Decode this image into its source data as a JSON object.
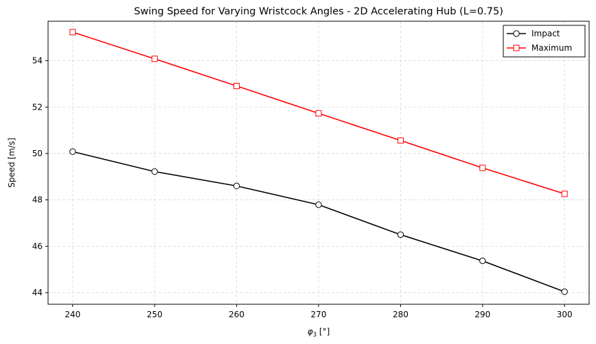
{
  "chart_data": {
    "type": "line",
    "title": "Swing Speed for Varying Wristcock Angles - 2D Accelerating Hub (L=0.75)",
    "xlabel": "φ₃ [°]",
    "ylabel": "Speed [m/s]",
    "x": [
      240,
      250,
      260,
      270,
      280,
      290,
      300
    ],
    "xlim": [
      237,
      303
    ],
    "ylim": [
      43.5,
      55.7
    ],
    "xticks": [
      "240",
      "250",
      "260",
      "270",
      "280",
      "290",
      "300"
    ],
    "yticks": [
      "44",
      "46",
      "48",
      "50",
      "52",
      "54"
    ],
    "grid": true,
    "legend_position": "top-right",
    "series": [
      {
        "name": "Impact",
        "values": [
          50.08,
          49.22,
          48.6,
          47.79,
          46.5,
          45.37,
          44.04
        ],
        "color": "#000000",
        "marker": "circle"
      },
      {
        "name": "Maximum",
        "values": [
          55.23,
          54.08,
          52.91,
          51.73,
          50.56,
          49.38,
          48.26
        ],
        "color": "#ff0000",
        "marker": "square"
      }
    ]
  }
}
